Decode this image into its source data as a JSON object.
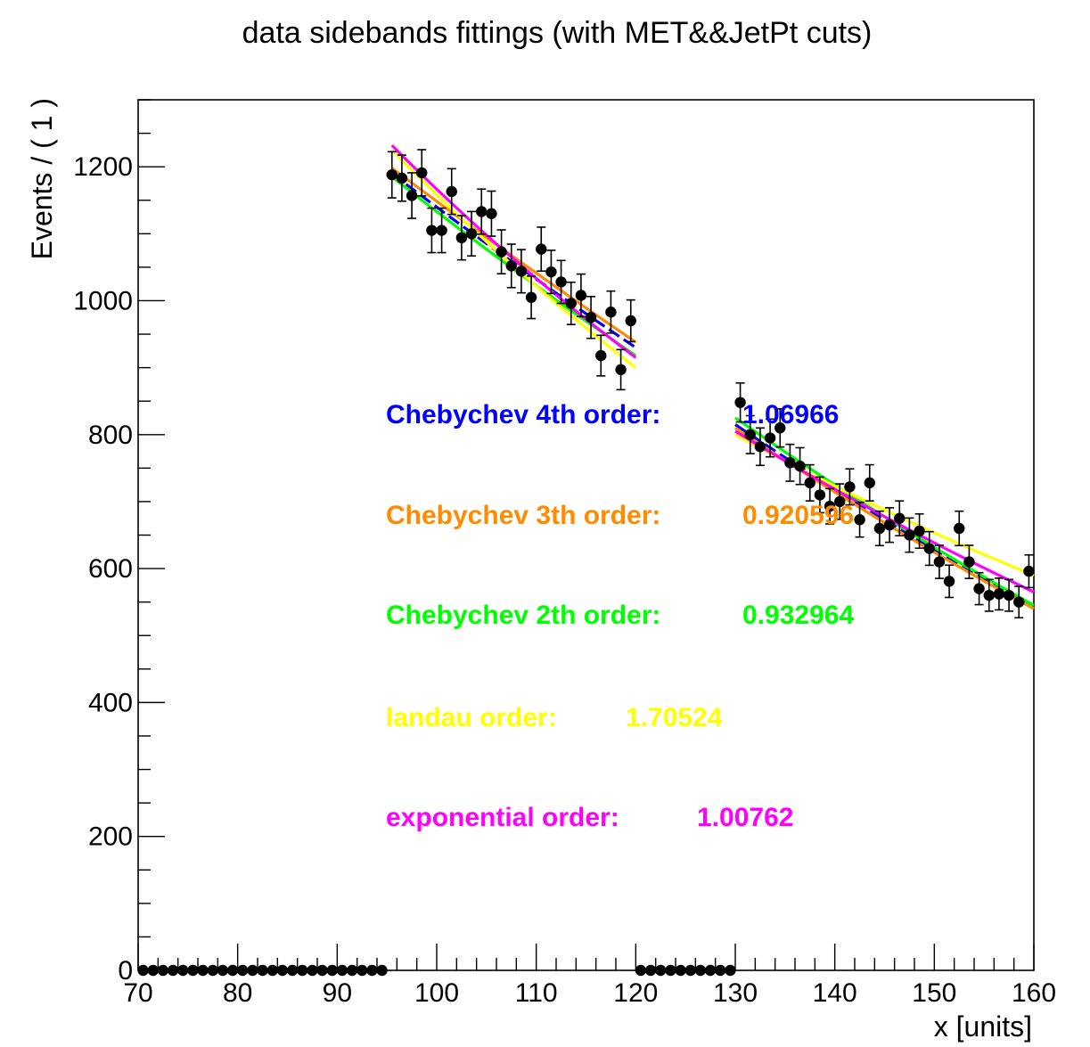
{
  "chart_data": {
    "type": "scatter",
    "title": "data sidebands fittings (with MET&&JetPt cuts)",
    "xlabel": "x [units]",
    "ylabel": "Events / ( 1 )",
    "xlim": [
      70,
      160
    ],
    "ylim": [
      0,
      1300
    ],
    "x_ticks": [
      70,
      80,
      90,
      100,
      110,
      120,
      130,
      140,
      150,
      160
    ],
    "y_ticks": [
      0,
      200,
      400,
      600,
      800,
      1000,
      1200
    ],
    "data_points": {
      "name": "data",
      "x": [
        70.5,
        71.5,
        72.5,
        73.5,
        74.5,
        75.5,
        76.5,
        77.5,
        78.5,
        79.5,
        80.5,
        81.5,
        82.5,
        83.5,
        84.5,
        85.5,
        86.5,
        87.5,
        88.5,
        89.5,
        90.5,
        91.5,
        92.5,
        93.5,
        94.5,
        95.5,
        96.5,
        97.5,
        98.5,
        99.5,
        100.5,
        101.5,
        102.5,
        103.5,
        104.5,
        105.5,
        106.5,
        107.5,
        108.5,
        109.5,
        110.5,
        111.5,
        112.5,
        113.5,
        114.5,
        115.5,
        116.5,
        117.5,
        118.5,
        119.5,
        120.5,
        121.5,
        122.5,
        123.5,
        124.5,
        125.5,
        126.5,
        127.5,
        128.5,
        129.5,
        130.5,
        131.5,
        132.5,
        133.5,
        134.5,
        135.5,
        136.5,
        137.5,
        138.5,
        139.5,
        140.5,
        141.5,
        142.5,
        143.5,
        144.5,
        145.5,
        146.5,
        147.5,
        148.5,
        149.5,
        150.5,
        151.5,
        152.5,
        153.5,
        154.5,
        155.5,
        156.5,
        157.5,
        158.5,
        159.5
      ],
      "y": [
        0,
        0,
        0,
        0,
        0,
        0,
        0,
        0,
        0,
        0,
        0,
        0,
        0,
        0,
        0,
        0,
        0,
        0,
        0,
        0,
        0,
        0,
        0,
        0,
        0,
        1188,
        1183,
        1157,
        1191,
        1105,
        1105,
        1163,
        1094,
        1100,
        1133,
        1130,
        1073,
        1052,
        1044,
        1005,
        1077,
        1043,
        1028,
        996,
        1008,
        975,
        918,
        983,
        897,
        970,
        0,
        0,
        0,
        0,
        0,
        0,
        0,
        0,
        0,
        0,
        848,
        800,
        782,
        795,
        810,
        758,
        753,
        728,
        710,
        693,
        700,
        722,
        673,
        728,
        660,
        665,
        675,
        650,
        656,
        630,
        610,
        581,
        660,
        610,
        570,
        560,
        562,
        560,
        550,
        596
      ],
      "errors_shown": true
    },
    "fits": [
      {
        "name": "Chebychev 4th order",
        "value": "1.06966",
        "color": "#0000ff",
        "dashed": true,
        "left": [
          [
            95.5,
            1190
          ],
          [
            107,
            1060
          ],
          [
            120,
            930
          ]
        ],
        "right": [
          [
            130,
            815
          ],
          [
            145,
            665
          ],
          [
            160,
            545
          ]
        ]
      },
      {
        "name": "Chebychev 3th order",
        "value": "0.920596",
        "color": "#ff8c00",
        "dashed": false,
        "left": [
          [
            95.5,
            1198
          ],
          [
            107,
            1070
          ],
          [
            120,
            938
          ]
        ],
        "right": [
          [
            130,
            810
          ],
          [
            145,
            662
          ],
          [
            160,
            540
          ]
        ]
      },
      {
        "name": "Chebychev 2th order",
        "value": "0.932964",
        "color": "#00ff00",
        "dashed": false,
        "left": [
          [
            95.5,
            1185
          ],
          [
            107,
            1050
          ],
          [
            120,
            918
          ]
        ],
        "right": [
          [
            130,
            825
          ],
          [
            145,
            670
          ],
          [
            160,
            545
          ]
        ]
      },
      {
        "name": "landau order",
        "value": "1.70524",
        "color": "#ffff00",
        "dashed": false,
        "left": [
          [
            95.5,
            1225
          ],
          [
            107,
            1050
          ],
          [
            120,
            900
          ]
        ],
        "right": [
          [
            130,
            800
          ],
          [
            145,
            680
          ],
          [
            160,
            590
          ]
        ]
      },
      {
        "name": "exponential order",
        "value": "1.00762",
        "color": "#ff00ff",
        "dashed": false,
        "left": [
          [
            95.5,
            1232
          ],
          [
            107,
            1060
          ],
          [
            120,
            915
          ]
        ],
        "right": [
          [
            130,
            805
          ],
          [
            145,
            670
          ],
          [
            160,
            565
          ]
        ]
      }
    ],
    "grid": false,
    "legend": "center"
  }
}
